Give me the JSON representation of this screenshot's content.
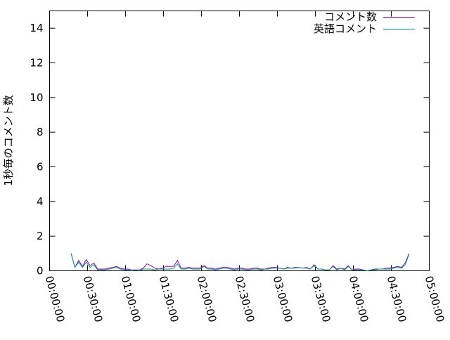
{
  "chart_data": {
    "type": "line",
    "title": "",
    "xlabel": "",
    "ylabel": "1秒毎のコメント数",
    "xlim": [
      "00:00:00",
      "05:00:00"
    ],
    "ylim": [
      0,
      15
    ],
    "xticks": [
      "00:00:00",
      "00:30:00",
      "01:00:00",
      "01:30:00",
      "02:00:00",
      "02:30:00",
      "03:00:00",
      "03:30:00",
      "04:00:00",
      "04:30:00",
      "05:00:00"
    ],
    "yticks": [
      "0",
      "2",
      "4",
      "6",
      "8",
      "10",
      "12",
      "14"
    ],
    "grid": false,
    "legend": "top-right",
    "x_minutes_start": 17,
    "x_minutes_step": 3,
    "series": [
      {
        "name": "コメント数",
        "color": "#9400d3",
        "values": [
          1.0,
          0.2,
          0.6,
          0.25,
          0.65,
          0.3,
          0.45,
          0.1,
          0.1,
          0.1,
          0.15,
          0.2,
          0.25,
          0.15,
          0.1,
          0.1,
          0.05,
          0.05,
          0.05,
          0.15,
          0.4,
          0.3,
          0.15,
          0.1,
          0.15,
          0.25,
          0.25,
          0.25,
          0.6,
          0.15,
          0.15,
          0.2,
          0.15,
          0.15,
          0.15,
          0.3,
          0.15,
          0.15,
          0.1,
          0.15,
          0.2,
          0.2,
          0.15,
          0.1,
          0.15,
          0.15,
          0.1,
          0.1,
          0.15,
          0.15,
          0.1,
          0.1,
          0.15,
          0.2,
          0.2,
          0.15,
          0.1,
          0.2,
          0.15,
          0.2,
          0.2,
          0.15,
          0.2,
          0.1,
          0.35,
          0.1,
          0.1,
          0.05,
          0.05,
          0.3,
          0.1,
          0.15,
          0.1,
          0.3,
          0.05,
          0.1,
          0.1,
          0.05,
          0.0,
          0.05,
          0.1,
          0.1,
          0.1,
          0.15,
          0.15,
          0.2,
          0.25,
          0.2,
          0.45,
          1.0
        ]
      },
      {
        "name": "英語コメント",
        "color": "#009e73",
        "values": [
          1.0,
          0.2,
          0.5,
          0.2,
          0.5,
          0.2,
          0.35,
          0.05,
          0.05,
          0.05,
          0.1,
          0.15,
          0.2,
          0.1,
          0.05,
          0.05,
          0.0,
          0.05,
          0.0,
          0.1,
          0.1,
          0.1,
          0.05,
          0.1,
          0.1,
          0.1,
          0.1,
          0.15,
          0.4,
          0.1,
          0.1,
          0.15,
          0.1,
          0.1,
          0.1,
          0.25,
          0.1,
          0.1,
          0.05,
          0.1,
          0.15,
          0.15,
          0.1,
          0.05,
          0.1,
          0.1,
          0.05,
          0.05,
          0.1,
          0.1,
          0.05,
          0.1,
          0.1,
          0.15,
          0.15,
          0.15,
          0.1,
          0.15,
          0.15,
          0.15,
          0.2,
          0.15,
          0.15,
          0.1,
          0.3,
          0.1,
          0.1,
          0.05,
          0.05,
          0.25,
          0.05,
          0.15,
          0.05,
          0.25,
          0.05,
          0.05,
          0.05,
          0.05,
          0.0,
          0.05,
          0.05,
          0.1,
          0.1,
          0.1,
          0.1,
          0.15,
          0.2,
          0.15,
          0.35,
          0.95
        ]
      }
    ]
  }
}
